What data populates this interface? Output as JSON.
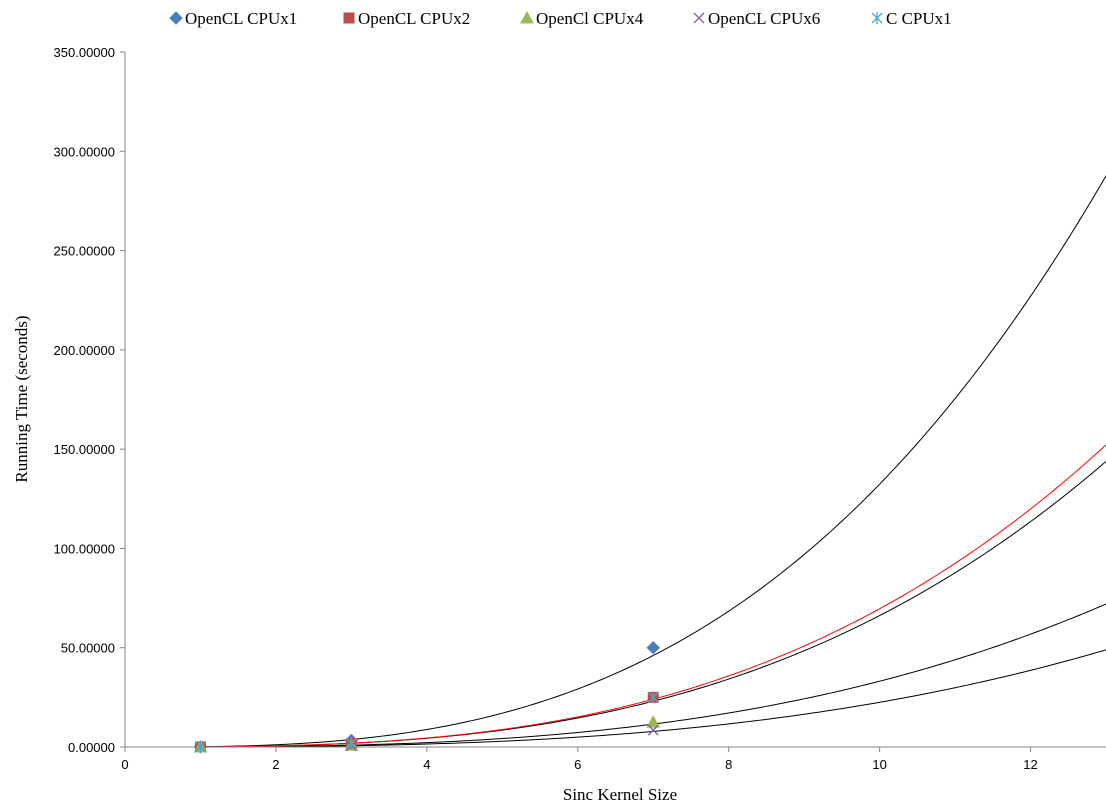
{
  "chart_data": {
    "type": "scatter",
    "xlabel": "Sinc Kernel Size",
    "ylabel": "Running Time (seconds)",
    "xlim": [
      0,
      13
    ],
    "ylim": [
      0,
      350
    ],
    "x_ticks": [
      0,
      2,
      4,
      6,
      8,
      10,
      12
    ],
    "x_tick_labels": [
      "0",
      "2",
      "4",
      "6",
      "8",
      "10",
      "12"
    ],
    "y_ticks": [
      0,
      50,
      100,
      150,
      200,
      250,
      300,
      350
    ],
    "y_tick_labels": [
      "0.00000",
      "50.00000",
      "100.00000",
      "150.00000",
      "200.00000",
      "250.00000",
      "300.00000",
      "350.00000"
    ],
    "grid": false,
    "legend_position": "top",
    "series": [
      {
        "name": "OpenCL CPUx1",
        "marker": "diamond",
        "color": "#4a7ebb",
        "x": [
          1,
          3,
          7
        ],
        "y": [
          0.05,
          3.3,
          50.0
        ]
      },
      {
        "name": "OpenCL CPUx2",
        "marker": "square",
        "color": "#be4b48",
        "x": [
          1,
          3,
          7
        ],
        "y": [
          0.03,
          1.7,
          25.0
        ]
      },
      {
        "name": "OpenCl CPUx4",
        "marker": "triangle",
        "color": "#98b954",
        "x": [
          1,
          3,
          7
        ],
        "y": [
          0.02,
          0.9,
          12.5
        ]
      },
      {
        "name": "OpenCL CPUx6",
        "marker": "x",
        "color": "#7d60a0",
        "x": [
          1,
          3,
          7
        ],
        "y": [
          0.01,
          0.6,
          8.5
        ]
      },
      {
        "name": "C CPUx1",
        "marker": "star",
        "color": "#46aac5",
        "x": [
          1,
          3,
          7
        ],
        "y": [
          0.03,
          1.7,
          25.0
        ]
      }
    ],
    "trendlines": [
      {
        "for": "OpenCL CPUx1",
        "type": "power",
        "a": 0.1458,
        "b": 2.958,
        "color": "#000000"
      },
      {
        "for": "OpenCL CPUx2",
        "type": "power",
        "a": 0.0729,
        "b": 2.958,
        "color": "#000000"
      },
      {
        "for": "OpenCl CPUx4",
        "type": "power",
        "a": 0.0365,
        "b": 2.958,
        "color": "#000000"
      },
      {
        "for": "OpenCL CPUx6",
        "type": "power",
        "a": 0.0248,
        "b": 2.958,
        "color": "#000000"
      },
      {
        "for": "C CPUx1",
        "type": "power",
        "a": 0.0729,
        "b": 2.98,
        "color": "#ff0000"
      }
    ]
  }
}
